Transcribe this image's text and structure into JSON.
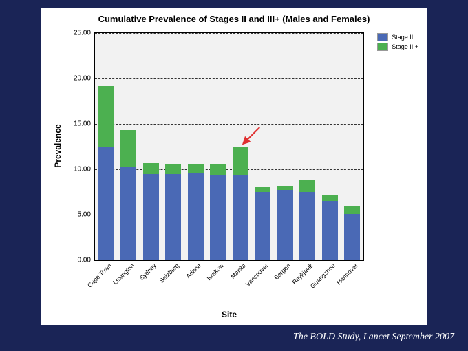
{
  "slide_background": "#1a2456",
  "chart": {
    "type": "stacked-bar",
    "title": "Cumulative Prevalence of Stages II and III+ (Males and Females)",
    "ylabel": "Prevalence",
    "xlabel": "Site",
    "ylim": [
      0,
      25
    ],
    "ytick_step": 5,
    "ytick_format": "fixed2",
    "grid_color": "#333333",
    "plot_bg": "#f2f2f2",
    "panel_bg": "#ffffff",
    "title_fontsize": 13,
    "label_fontsize": 12,
    "tick_fontsize": 10,
    "series": [
      {
        "name": "Stage II",
        "color": "#4a69b5"
      },
      {
        "name": "Stage III+",
        "color": "#4cb050"
      }
    ],
    "categories": [
      "Cape Town",
      "Lexington",
      "Sydney",
      "Selzburg",
      "Adana",
      "Krakow",
      "Manila",
      "Vancouver",
      "Bergen",
      "Reykjavik",
      "Guangzhou",
      "Hannover"
    ],
    "stage2_values": [
      12.4,
      10.2,
      9.5,
      9.5,
      9.6,
      9.3,
      9.4,
      7.5,
      7.7,
      7.5,
      6.5,
      5.1
    ],
    "stage3p_values": [
      6.8,
      4.1,
      1.2,
      1.1,
      1.0,
      1.3,
      3.1,
      0.6,
      0.5,
      1.4,
      0.6,
      0.8
    ],
    "bar_width_ratio": 0.72,
    "highlight_index": 6,
    "arrow_color": "#e03030"
  },
  "citation": "The BOLD Study, Lancet September 2007"
}
